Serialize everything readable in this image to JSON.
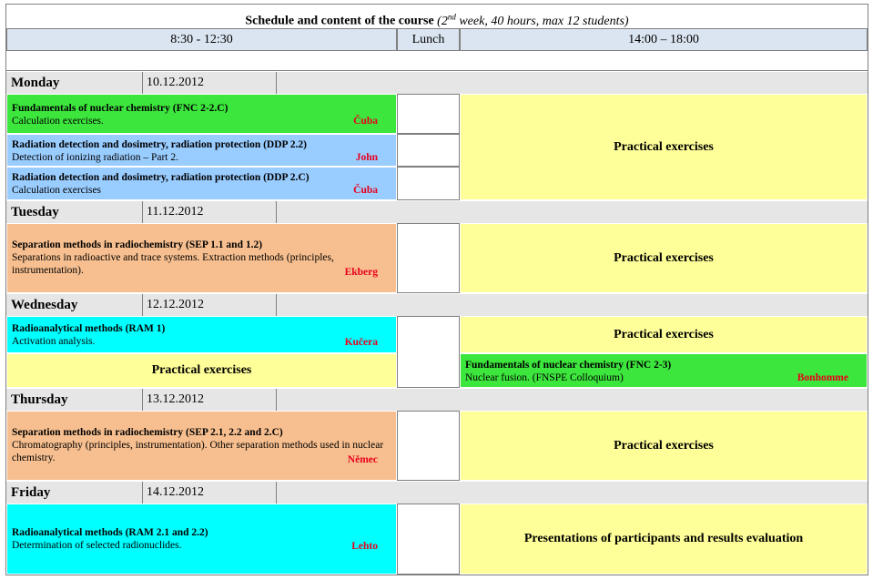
{
  "title": {
    "main": "Schedule and content of the course",
    "paren_open": "(",
    "week_num": "2",
    "week_sup": "nd",
    "week_rest": " week, 40 hours, max 12 students)"
  },
  "header": {
    "morning": "8:30 - 12:30",
    "lunch": "Lunch",
    "afternoon": "14:00 – 18:00"
  },
  "days": {
    "monday": {
      "name": "Monday",
      "date": "10.12.2012"
    },
    "tuesday": {
      "name": "Tuesday",
      "date": "11.12.2012"
    },
    "wednesday": {
      "name": "Wednesday",
      "date": "12.12.2012"
    },
    "thursday": {
      "name": "Thursday",
      "date": "13.12.2012"
    },
    "friday": {
      "name": "Friday",
      "date": "14.12.2012"
    }
  },
  "sessions": {
    "mon1": {
      "title": "Fundamentals of nuclear chemistry (FNC 2-2.C)",
      "desc": "Calculation exercises.",
      "lecturer": "Čuba"
    },
    "mon2": {
      "title": "Radiation detection and dosimetry, radiation protection (DDP 2.2)",
      "desc": "Detection of ionizing radiation – Part 2.",
      "lecturer": "John"
    },
    "mon3": {
      "title": "Radiation detection and dosimetry, radiation protection (DDP 2.C)",
      "desc": "Calculation exercises",
      "lecturer": "Čuba"
    },
    "mon_pm": "Practical exercises",
    "tue1": {
      "title": "Separation methods in radiochemistry (SEP 1.1 and 1.2)",
      "desc": "Separations in radioactive and trace systems. Extraction methods (principles, instrumentation).",
      "lecturer": "Ekberg"
    },
    "tue_pm": "Practical exercises",
    "wed1": {
      "title": "Radioanalytical methods (RAM 1)",
      "desc": "Activation analysis.",
      "lecturer": "Kučera"
    },
    "wed_am2": "Practical exercises",
    "wed_pm1": "Practical exercises",
    "wed_pm2": {
      "title": "Fundamentals of nuclear chemistry (FNC 2-3)",
      "desc": "Nuclear fusion. (FNSPE Colloquium)",
      "lecturer": "Bonhomme"
    },
    "thu1": {
      "title": "Separation methods in radiochemistry (SEP 2.1, 2.2 and 2.C)",
      "desc": "Chromatography (principles, instrumentation). Other separation methods used in nuclear chemistry.",
      "lecturer": "Němec"
    },
    "thu_pm": "Practical exercises",
    "fri1": {
      "title": "Radioanalytical methods (RAM 2.1 and 2.2)",
      "desc": "Determination of selected radionuclides.",
      "lecturer": "Lehto"
    },
    "fri_pm": "Presentations of participants and results evaluation"
  }
}
